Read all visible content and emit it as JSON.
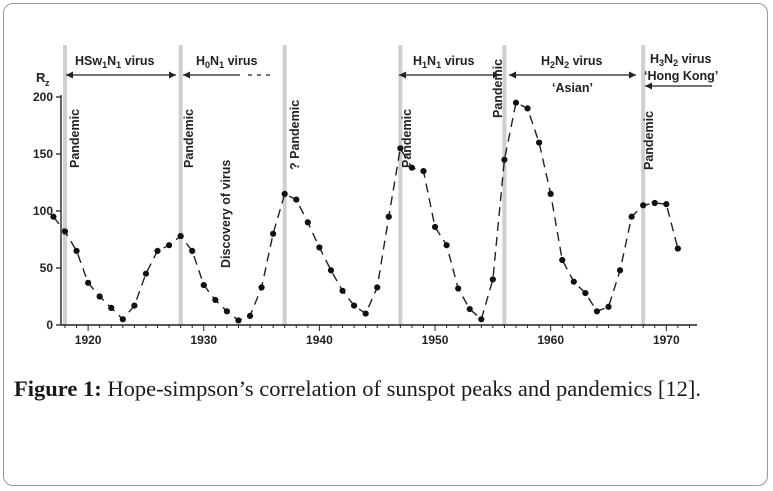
{
  "chart_data": {
    "type": "line",
    "ylabel": "R",
    "ylabel_sub": "z",
    "xlim": [
      1918,
      1973
    ],
    "ylim": [
      0,
      200
    ],
    "xticks": [
      1920,
      1930,
      1940,
      1950,
      1960,
      1970
    ],
    "yticks": [
      0,
      50,
      100,
      150,
      200
    ],
    "grid": false,
    "series": [
      {
        "x": [
          1917,
          1918,
          1919,
          1920,
          1921,
          1922,
          1923,
          1924,
          1925,
          1926,
          1927,
          1928,
          1929,
          1930,
          1931,
          1932,
          1933,
          1934,
          1935,
          1936,
          1937,
          1938,
          1939,
          1940,
          1941,
          1942,
          1943,
          1944,
          1945,
          1946,
          1947,
          1948,
          1949,
          1950,
          1951,
          1952,
          1953,
          1954,
          1955,
          1956,
          1957,
          1958,
          1959,
          1960,
          1961,
          1962,
          1963,
          1964,
          1965,
          1966,
          1967,
          1968,
          1969,
          1970,
          1971
        ],
        "values": [
          95,
          82,
          65,
          37,
          25,
          15,
          5,
          17,
          45,
          65,
          70,
          78,
          65,
          35,
          22,
          12,
          4,
          8,
          33,
          80,
          115,
          110,
          90,
          68,
          48,
          30,
          17,
          10,
          33,
          95,
          155,
          138,
          135,
          86,
          70,
          32,
          14,
          5,
          40,
          145,
          195,
          190,
          160,
          115,
          57,
          38,
          28,
          12,
          16,
          48,
          95,
          105,
          107,
          106,
          67
        ]
      }
    ],
    "pandemic_lines": [
      1918,
      1928,
      1937,
      1947,
      1956,
      1968
    ],
    "annotations": [
      {
        "text": "Pandemic",
        "x": 1918.5
      },
      {
        "text": "Pandemic",
        "x": 1928.5
      },
      {
        "text": "Discovery of virus",
        "x": 1933
      },
      {
        "text": "? Pandemic",
        "x": 1937.5
      },
      {
        "text": "Pandemic",
        "x": 1947.5
      },
      {
        "text": "Pandemic",
        "x": 1956.2
      },
      {
        "text": "Pandemic",
        "x": 1968.5
      }
    ],
    "virus_spans": [
      {
        "base": "HSw",
        "sub1": "1",
        "mid": "N",
        "sub2": "1",
        "tail": " virus",
        "from": 1918,
        "to": 1928
      },
      {
        "base": "H",
        "sub1": "0",
        "mid": "N",
        "sub2": "1",
        "tail": " virus",
        "from": 1928,
        "to": 1937
      },
      {
        "base": "H",
        "sub1": "1",
        "mid": "N",
        "sub2": "1",
        "tail": " virus",
        "from": 1946,
        "to": 1957
      },
      {
        "base": "H",
        "sub1": "2",
        "mid": "N",
        "sub2": "2",
        "tail": " virus",
        "from": 1957,
        "to": 1968,
        "subtitle": "‘Asian’"
      },
      {
        "base": "H",
        "sub1": "3",
        "mid": "N",
        "sub2": "2",
        "tail": " virus",
        "from": 1968,
        "to": 1973,
        "subtitle": "‘Hong Kong’"
      }
    ]
  },
  "caption": {
    "label": "Figure 1:",
    "text": " Hope-simpson’s correlation of sunspot peaks and pandemics [12]."
  }
}
